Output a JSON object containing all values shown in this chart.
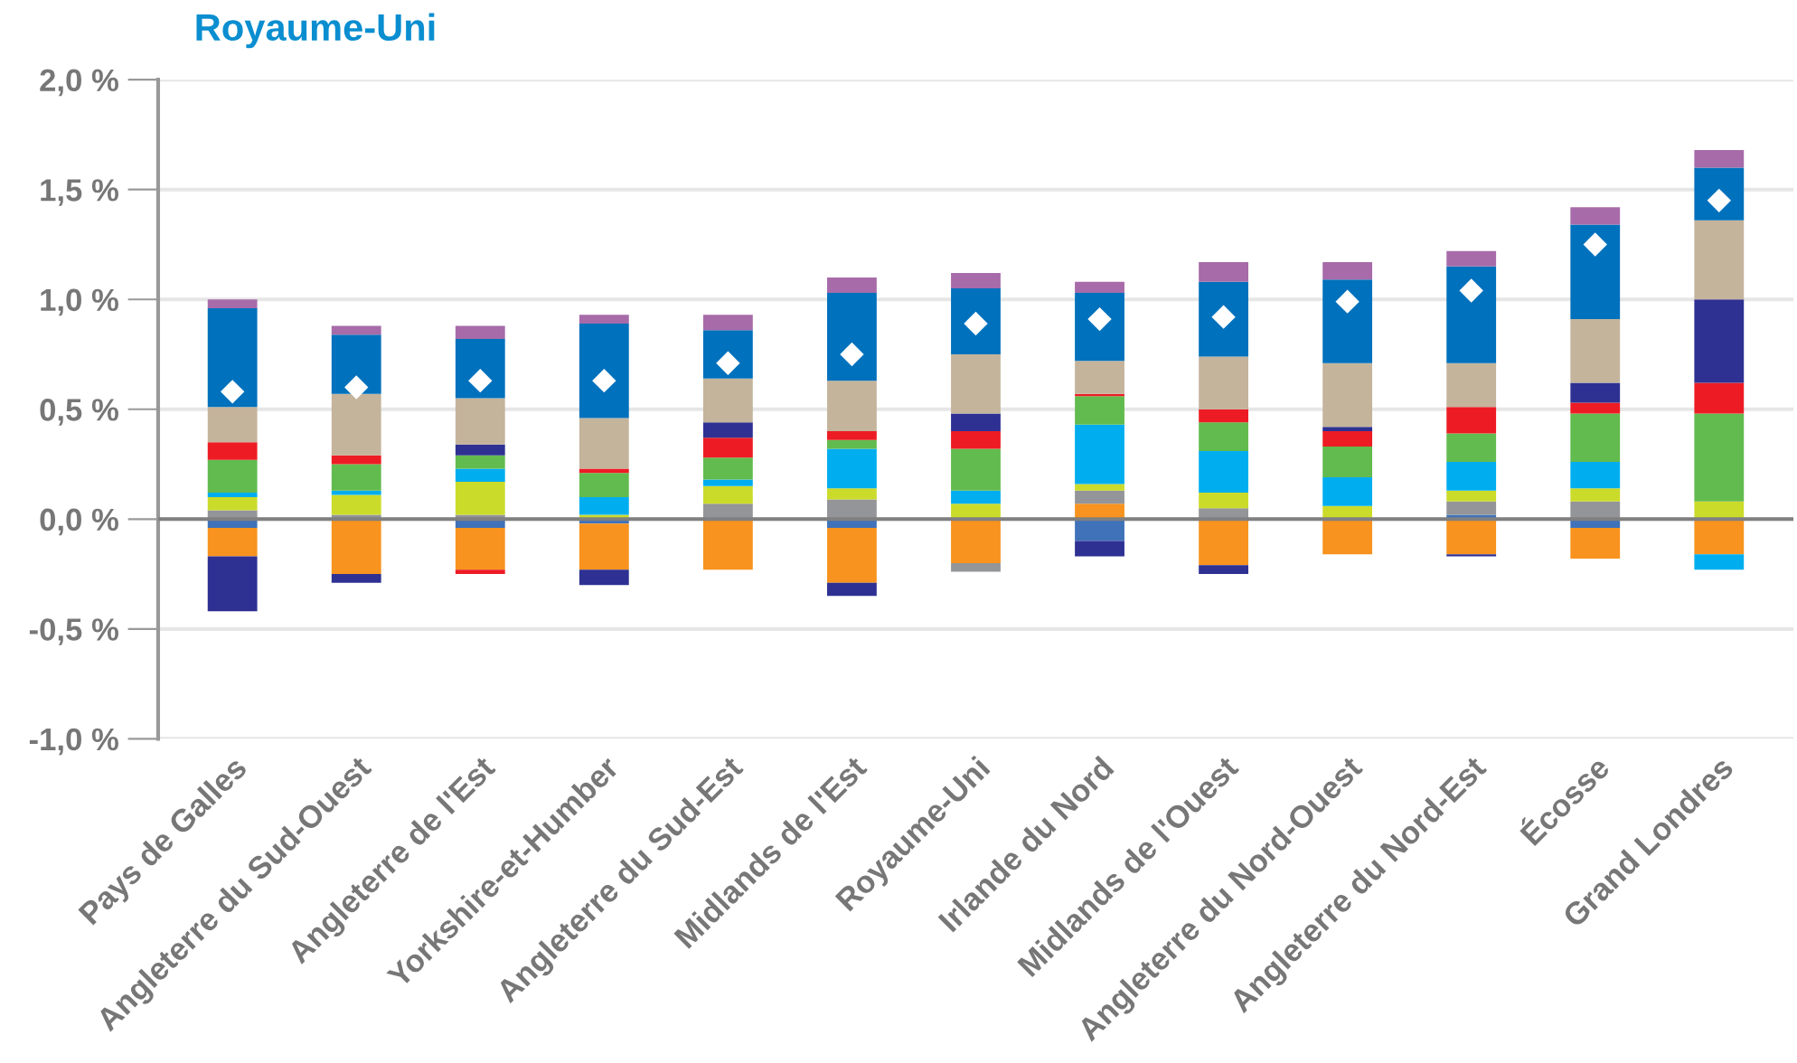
{
  "chart_data": {
    "type": "bar",
    "stacked": true,
    "title": "Royaume-Uni",
    "categories": [
      "Pays de Galles",
      "Angleterre du Sud-Ouest",
      "Angleterre de l'Est",
      "Yorkshire-et-Humber",
      "Angleterre du Sud-Est",
      "Midlands de l'Est",
      "Royaume-Uni",
      "Irlande du Nord",
      "Midlands de l'Ouest",
      "Angleterre du Nord-Ouest",
      "Angleterre du Nord-Est",
      "Écosse",
      "Grand Londres"
    ],
    "series": [
      {
        "color": "#3f72b9",
        "values": [
          -0.04,
          0,
          -0.04,
          -0.02,
          0,
          -0.04,
          0,
          -0.1,
          0,
          0,
          0.02,
          -0.04,
          0
        ]
      },
      {
        "color": "#f7931e",
        "values": [
          -0.13,
          -0.25,
          -0.19,
          -0.21,
          -0.23,
          -0.25,
          -0.2,
          0.07,
          -0.21,
          -0.16,
          -0.16,
          -0.14,
          -0.16
        ]
      },
      {
        "color": "#939598",
        "values": [
          0.04,
          0.02,
          0.02,
          null,
          0.07,
          0.09,
          -0.04,
          0.06,
          0.05,
          0,
          0.06,
          0.08,
          0
        ]
      },
      {
        "color": "#cbdb2a",
        "values": [
          0.06,
          0.09,
          0.15,
          0.02,
          0.08,
          0.05,
          0.07,
          0.03,
          0.07,
          0.06,
          0.05,
          0.06,
          0.08
        ]
      },
      {
        "color": "#00aeef",
        "values": [
          0.02,
          0.02,
          0.06,
          0.08,
          0.03,
          0.18,
          0.06,
          0.27,
          0.19,
          0.13,
          0.13,
          0.12,
          -0.07
        ]
      },
      {
        "color": "#62bb4e",
        "values": [
          0.15,
          0.12,
          0.06,
          0.11,
          0.1,
          0.04,
          0.19,
          0.13,
          0.13,
          0.14,
          0.13,
          0.22,
          0.4
        ]
      },
      {
        "color": "#ed1c24",
        "values": [
          0.08,
          0.04,
          -0.02,
          0.02,
          0.09,
          0.04,
          0.08,
          0.01,
          0.06,
          0.07,
          0.12,
          0.05,
          0.14
        ]
      },
      {
        "color": "#2e3192",
        "values": [
          -0.25,
          -0.04,
          0.05,
          -0.07,
          0.07,
          -0.06,
          0.08,
          -0.07,
          -0.04,
          0.02,
          -0.01,
          0.09,
          0.38
        ]
      },
      {
        "color": "#c4b49c",
        "values": [
          0.16,
          0.28,
          0.21,
          0.23,
          0.2,
          0.23,
          0.27,
          0.15,
          0.24,
          0.29,
          0.2,
          0.29,
          0.36
        ]
      },
      {
        "color": "#0071bc",
        "values": [
          0.45,
          0.27,
          0.27,
          0.43,
          0.22,
          0.4,
          0.3,
          0.31,
          0.34,
          0.38,
          0.44,
          0.43,
          0.24
        ]
      },
      {
        "color": "#a76ba9",
        "values": [
          0.04,
          0.04,
          0.06,
          0.04,
          0.07,
          0.07,
          0.07,
          0.05,
          0.09,
          0.08,
          0.07,
          0.08,
          0.08
        ]
      },
      {
        "type": "scatter",
        "marker": "diamond",
        "color": "#ffffff",
        "x": [
          "Pays de Galles",
          "Angleterre du Sud-Ouest",
          "Angleterre de l'Est",
          "Yorkshire-et-Humber",
          "Angleterre du Sud-Est",
          "Midlands de l'Est",
          "Royaume-Uni",
          "Irlande du Nord",
          "Midlands de l'Ouest",
          "Angleterre du Nord-Ouest",
          "Angleterre du Nord-Est",
          "Écosse",
          "Grand Londres"
        ],
        "values": [
          0.58,
          0.6,
          0.63,
          0.63,
          0.71,
          0.75,
          0.89,
          0.91,
          0.92,
          0.99,
          1.04,
          1.25,
          1.45
        ]
      }
    ],
    "ylim": [
      -1.0,
      2.0
    ],
    "yticks": [
      {
        "value": -1.0,
        "label": "-1,0 %"
      },
      {
        "value": -0.5,
        "label": "-0,5 %"
      },
      {
        "value": 0,
        "label": "0,0 %"
      },
      {
        "value": 0.5,
        "label": "0,5 %"
      },
      {
        "value": 1.0,
        "label": "1,0 %"
      },
      {
        "value": 1.5,
        "label": "1,5 %"
      },
      {
        "value": 2.0,
        "label": "2,0 %"
      }
    ],
    "grid": "y",
    "legend": false
  }
}
